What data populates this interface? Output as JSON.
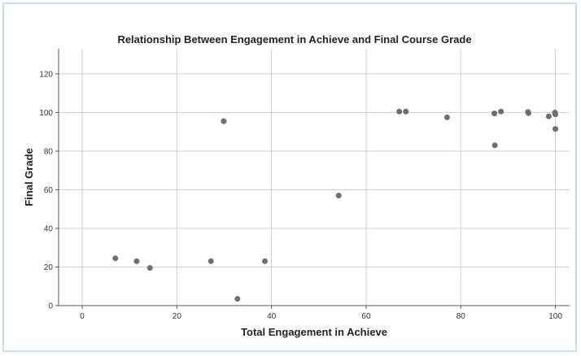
{
  "chart_data": {
    "type": "scatter",
    "title": "Relationship Between Engagement in Achieve and Final Course Grade",
    "xlabel": "Total Engagement in Achieve",
    "ylabel": "Final Grade",
    "xlim": [
      -5,
      103
    ],
    "ylim": [
      0,
      133
    ],
    "xticks": [
      0,
      20,
      40,
      60,
      80,
      100
    ],
    "yticks": [
      0,
      20,
      40,
      60,
      80,
      100,
      120
    ],
    "grid": true,
    "color": "#6f6f6f",
    "points": [
      {
        "x": 7,
        "y": 24.5
      },
      {
        "x": 11.5,
        "y": 23
      },
      {
        "x": 14.3,
        "y": 19.5
      },
      {
        "x": 27.2,
        "y": 23
      },
      {
        "x": 29.9,
        "y": 95.5
      },
      {
        "x": 32.8,
        "y": 3.5
      },
      {
        "x": 38.6,
        "y": 23
      },
      {
        "x": 54.2,
        "y": 57
      },
      {
        "x": 67,
        "y": 100.5
      },
      {
        "x": 68.4,
        "y": 100.5
      },
      {
        "x": 77.1,
        "y": 97.5
      },
      {
        "x": 87.1,
        "y": 99.5
      },
      {
        "x": 87.2,
        "y": 83
      },
      {
        "x": 88.5,
        "y": 100.5
      },
      {
        "x": 94.2,
        "y": 100.3
      },
      {
        "x": 94.3,
        "y": 99.7
      },
      {
        "x": 98.6,
        "y": 98
      },
      {
        "x": 99.9,
        "y": 100
      },
      {
        "x": 100,
        "y": 99
      },
      {
        "x": 100,
        "y": 91.5
      }
    ]
  }
}
